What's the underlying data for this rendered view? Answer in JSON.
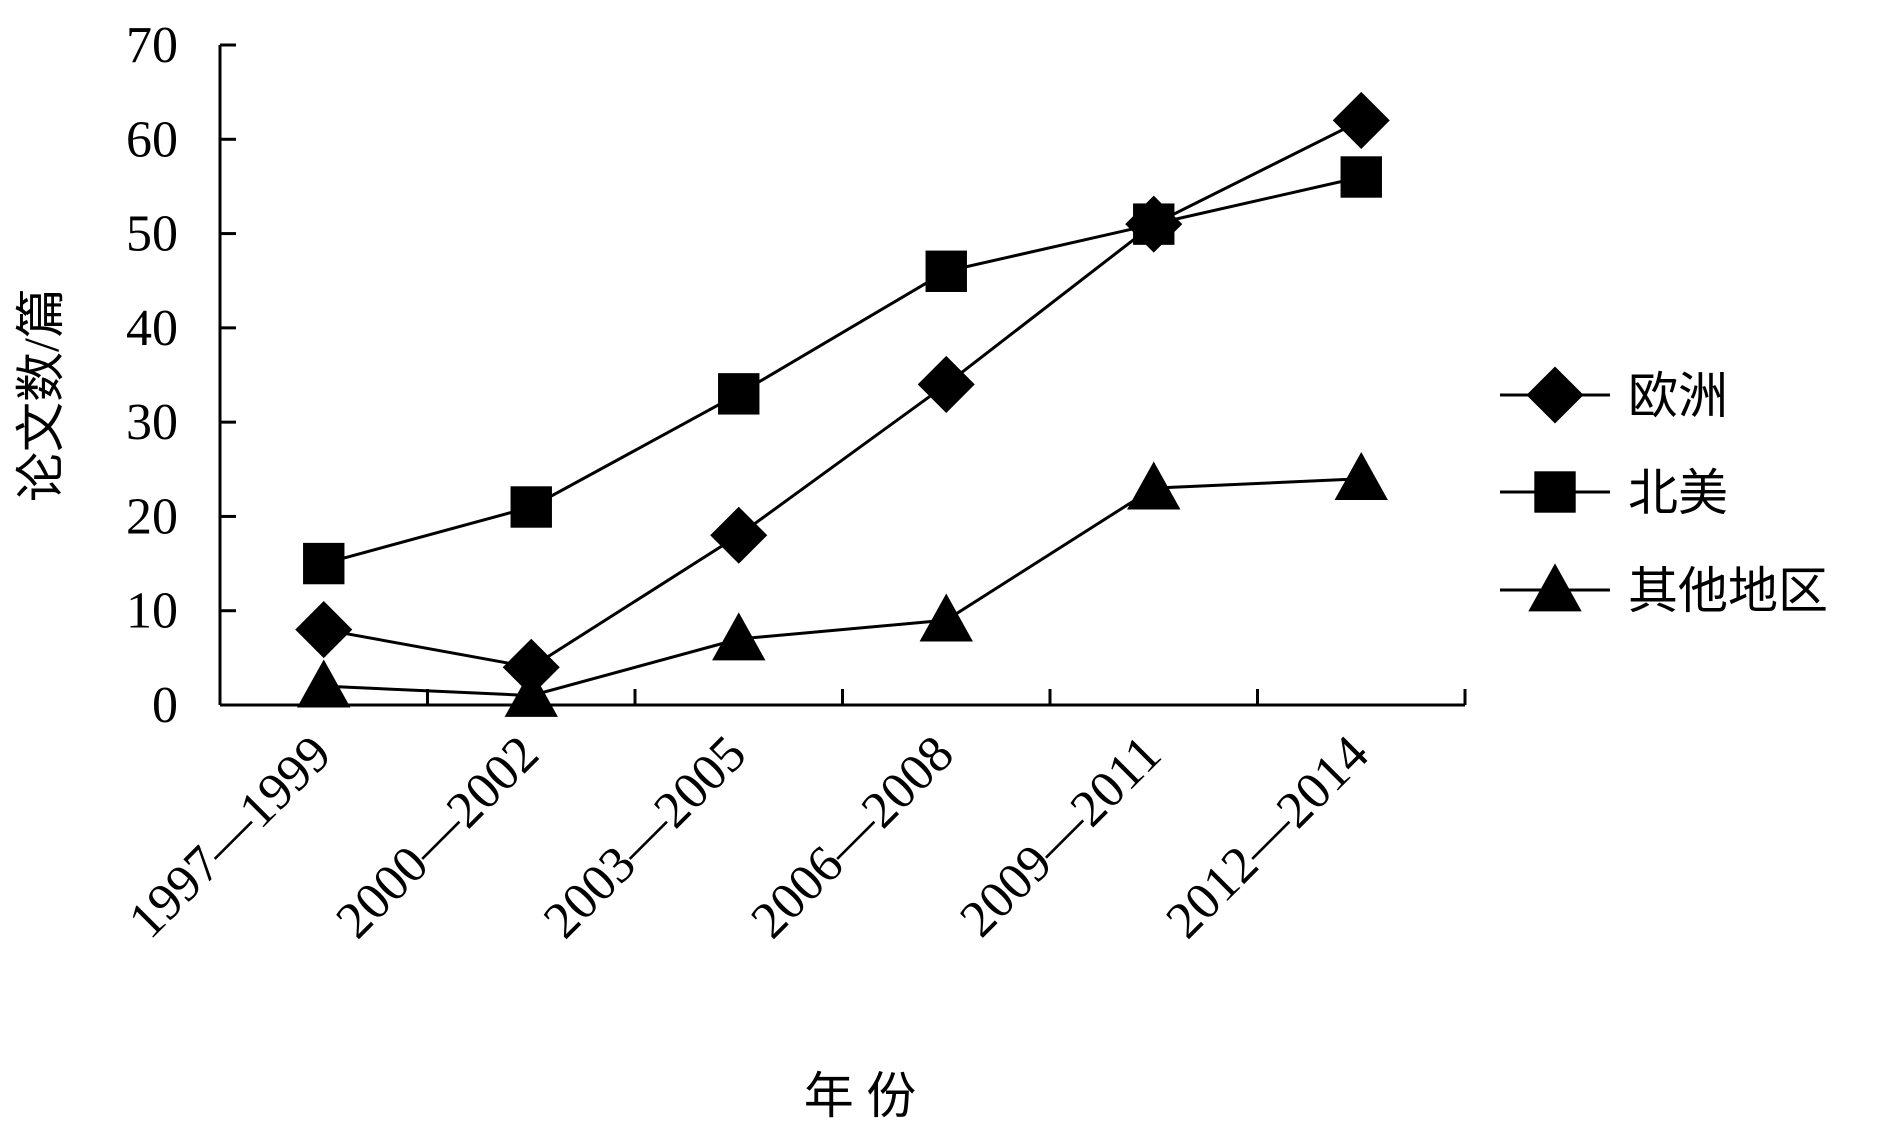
{
  "chart_data": {
    "type": "line",
    "title": "",
    "xlabel": "年 份",
    "ylabel": "论文数/篇",
    "categories": [
      "1997—1999",
      "2000—2002",
      "2003—2005",
      "2006—2008",
      "2009—2011",
      "2012—2014"
    ],
    "ylim": [
      0,
      70
    ],
    "yticks": [
      0,
      10,
      20,
      30,
      40,
      50,
      60,
      70
    ],
    "grid": false,
    "legend_position": "right",
    "series": [
      {
        "name": "欧洲",
        "marker": "diamond",
        "values": [
          8,
          4,
          18,
          34,
          51,
          62
        ]
      },
      {
        "name": "北美",
        "marker": "square",
        "values": [
          15,
          21,
          33,
          46,
          51,
          56
        ]
      },
      {
        "name": "其他地区",
        "marker": "triangle",
        "values": [
          2,
          1,
          7,
          9,
          23,
          24
        ]
      }
    ]
  }
}
